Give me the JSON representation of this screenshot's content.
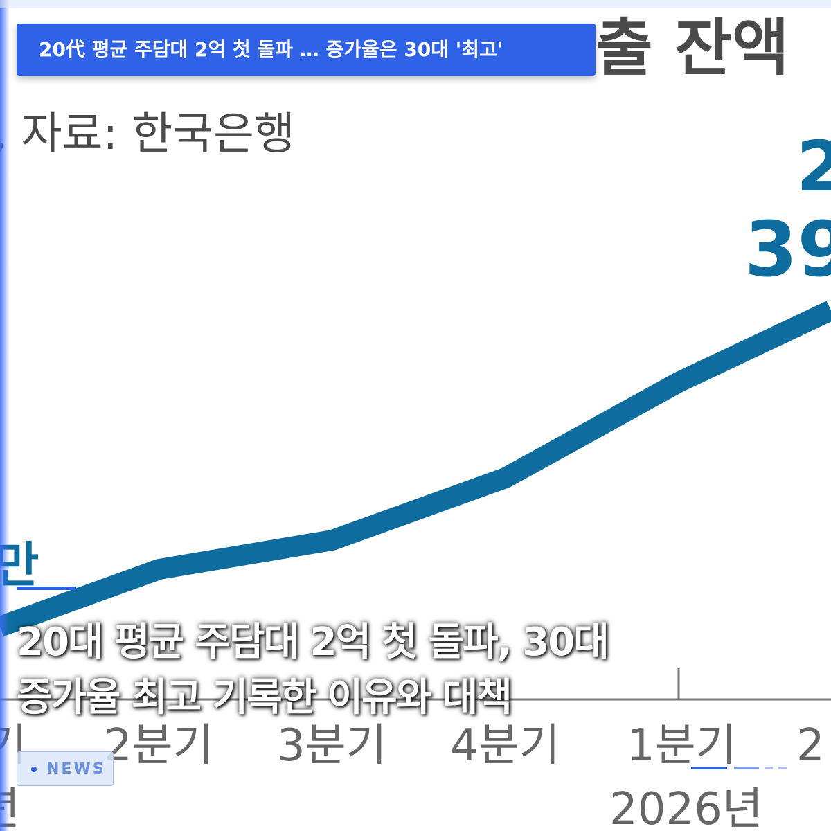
{
  "background": {
    "title_fragment": "출 잔액",
    "source": ", 자료: 한국은행",
    "value_top": "2",
    "value_bottom": "39",
    "left_label": "만",
    "x_labels": [
      "기",
      "2분기",
      "3분기",
      "4분기",
      "1분기",
      "2"
    ],
    "year_left": "년",
    "year_right": "2026년"
  },
  "banner": {
    "text": "20代 평균 주담대 2억 첫 돌파 … 증가율은 30대 '최고'"
  },
  "headline": {
    "lines": [
      "20대 평균 주담대 2억 첫 돌파, 30대",
      "증가율 최고 기록한 이유와 대책"
    ]
  },
  "badge": {
    "text": "NEWS"
  }
}
